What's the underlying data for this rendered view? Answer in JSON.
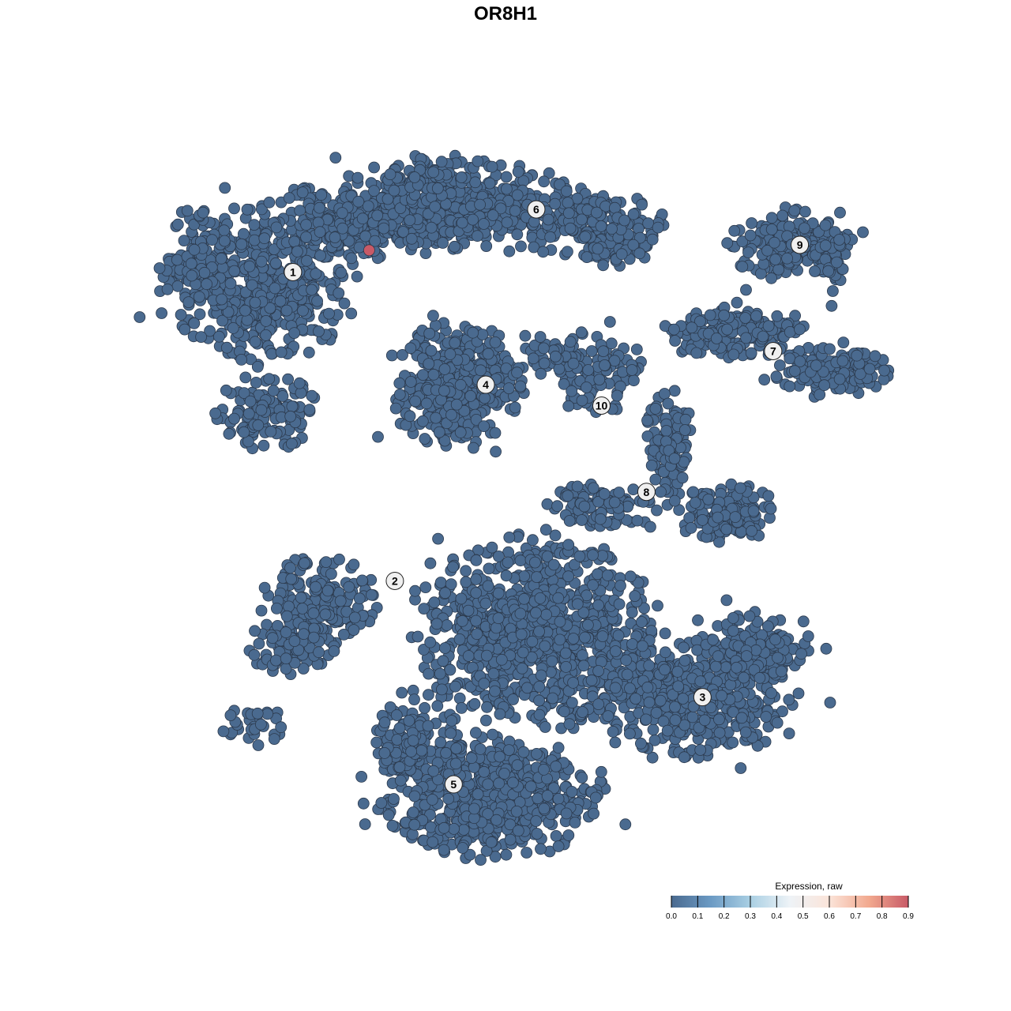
{
  "chart_data": {
    "type": "scatter",
    "title": "OR8H1",
    "xlabel": "",
    "ylabel": "",
    "axes_visible": false,
    "grid": false,
    "point_color_default": "#4a6a8f",
    "point_stroke": "#2c3a4d",
    "clusters": [
      {
        "label": "1",
        "center": [
          -25.3,
          25.7
        ]
      },
      {
        "label": "2",
        "center": [
          -14.2,
          -8.3
        ]
      },
      {
        "label": "3",
        "center": [
          19.3,
          -21.1
        ]
      },
      {
        "label": "4",
        "center": [
          -4.3,
          13.3
        ]
      },
      {
        "label": "5",
        "center": [
          -7.8,
          -30.7
        ]
      },
      {
        "label": "6",
        "center": [
          1.2,
          32.6
        ]
      },
      {
        "label": "7",
        "center": [
          27.0,
          17.0
        ]
      },
      {
        "label": "8",
        "center": [
          13.2,
          1.5
        ]
      },
      {
        "label": "9",
        "center": [
          29.9,
          28.7
        ]
      },
      {
        "label": "10",
        "center": [
          8.3,
          11.0
        ]
      }
    ],
    "highlighted_points": [
      {
        "x": -17.0,
        "y": 28.1,
        "value": 0.9,
        "color": "#c85a67"
      }
    ],
    "colorbar": {
      "title": "Expression, raw",
      "range": [
        0.0,
        0.9
      ],
      "ticks": [
        "0.0",
        "0.1",
        "0.2",
        "0.3",
        "0.4",
        "0.5",
        "0.6",
        "0.7",
        "0.8",
        "0.9"
      ],
      "colors": [
        "#4a6a8f",
        "#6b9ac4",
        "#a9cfe3",
        "#eef3f7",
        "#fbe4d9",
        "#f2a98f",
        "#c85a67"
      ],
      "placement": "bottom-right"
    }
  }
}
